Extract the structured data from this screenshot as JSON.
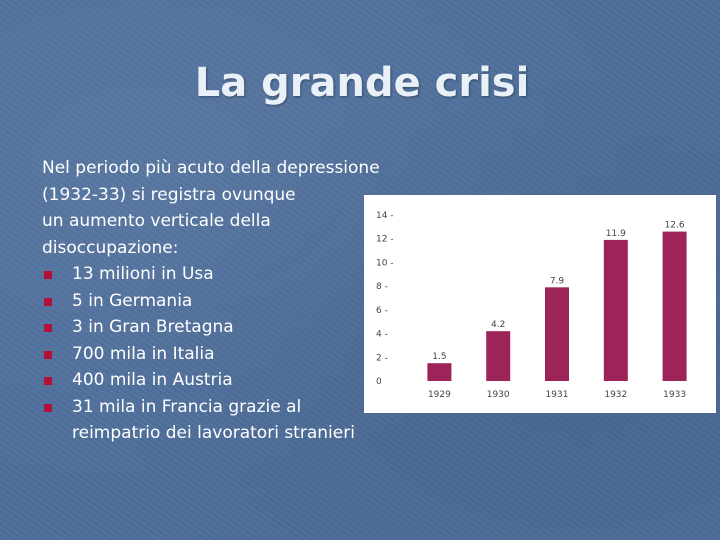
{
  "slide": {
    "title": "La grande crisi",
    "intro_lines": [
      "Nel periodo più acuto della depressione",
      "(1932-33) si registra ovunque",
      "un aumento verticale della",
      "disoccupazione:"
    ],
    "bullets": [
      "13 milioni in Usa",
      "5 in Germania",
      "3 in Gran Bretagna",
      "700 mila in Italia",
      "400 mila in Austria",
      "31 mila in Francia grazie al reimpatrio dei lavoratori stranieri"
    ],
    "bullet_icon": "square-bullet-icon",
    "colors": {
      "background": "#4f6f9c",
      "title": "#eaf0f7",
      "bullet": "#b0103a",
      "bar": "#9c2458"
    }
  },
  "chart_data": {
    "type": "bar",
    "categories": [
      "1929",
      "1930",
      "1931",
      "1932",
      "1933"
    ],
    "values": [
      1.5,
      4.2,
      7.9,
      11.9,
      12.6
    ],
    "value_labels": [
      "1.5",
      "4.2",
      "7.9",
      "11.9",
      "12.6"
    ],
    "yticks": [
      "0",
      "2 -",
      "4 -",
      "6 -",
      "8 -",
      "10 -",
      "12 -",
      "14 -"
    ],
    "ytick_values": [
      0,
      2,
      4,
      6,
      8,
      10,
      12,
      14
    ],
    "ylim": [
      0,
      14
    ],
    "title": "",
    "xlabel": "",
    "ylabel": "",
    "grid": false,
    "legend": false
  }
}
